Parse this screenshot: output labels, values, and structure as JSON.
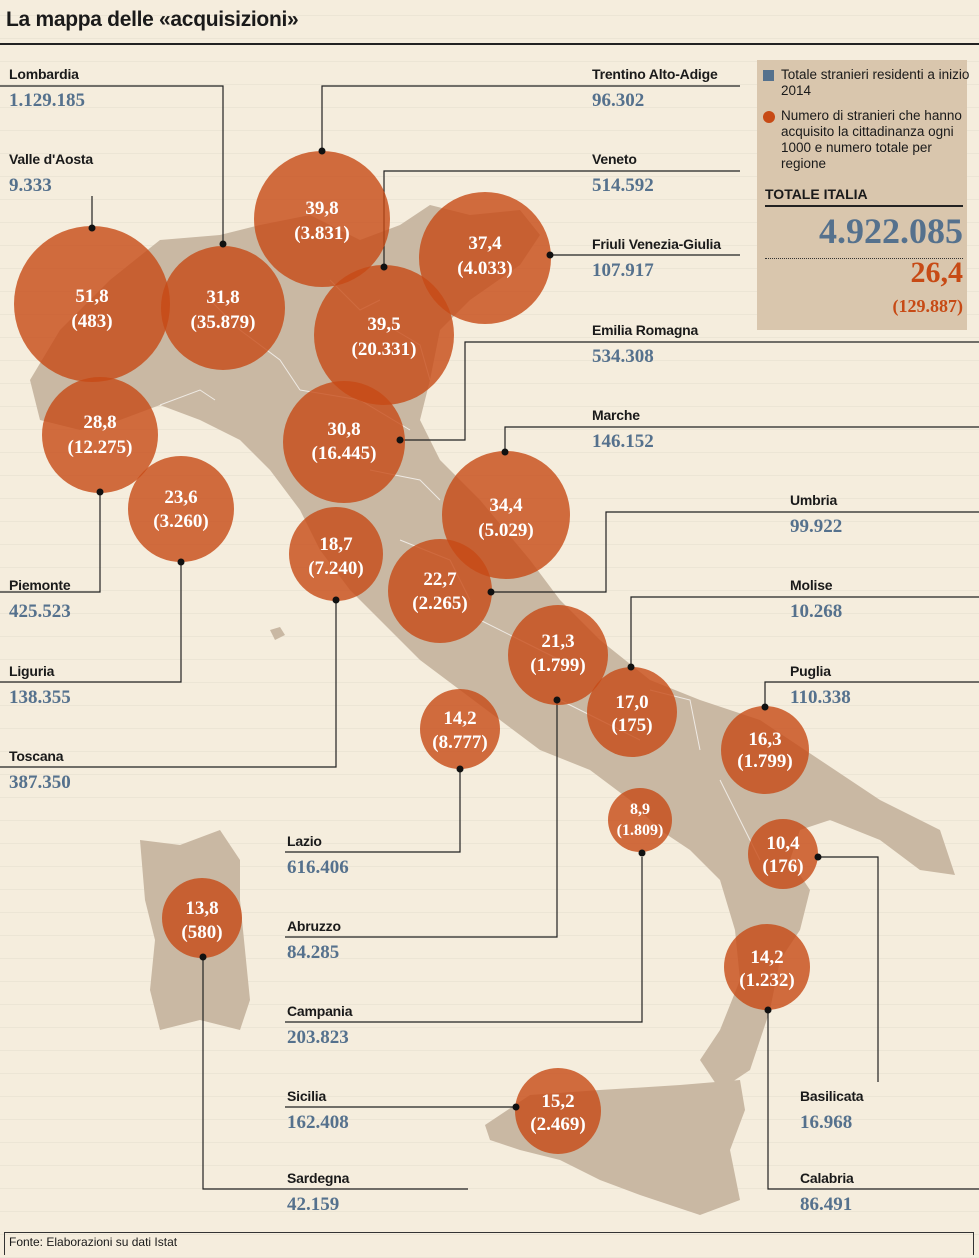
{
  "title": "La mappa delle «acquisizioni»",
  "legend": {
    "residents_label": "Totale stranieri residenti a inizio 2014",
    "acquired_label": "Numero di stranieri che hanno acquisito la cittadinanza ogni 1000 e numero totale per regione",
    "total_label": "TOTALE ITALIA",
    "total_residents": "4.922.085",
    "total_rate": "26,4",
    "total_count": "(129.887)"
  },
  "colors": {
    "bubble": "#c74a15",
    "residents": "#55718d",
    "land": "#c9b8a3",
    "background": "#f5eddd"
  },
  "regions": [
    {
      "id": "lombardia",
      "name": "Lombardia",
      "residents": "1.129.185",
      "rate": "31,8",
      "count": "(35.879)"
    },
    {
      "id": "valle-daosta",
      "name": "Valle d'Aosta",
      "residents": "9.333",
      "rate": "51,8",
      "count": "(483)"
    },
    {
      "id": "piemonte",
      "name": "Piemonte",
      "residents": "425.523",
      "rate": "28,8",
      "count": "(12.275)"
    },
    {
      "id": "liguria",
      "name": "Liguria",
      "residents": "138.355",
      "rate": "23,6",
      "count": "(3.260)"
    },
    {
      "id": "toscana",
      "name": "Toscana",
      "residents": "387.350",
      "rate": "18,7",
      "count": "(7.240)"
    },
    {
      "id": "trentino",
      "name": "Trentino Alto-Adige",
      "residents": "96.302",
      "rate": "39,8",
      "count": "(3.831)"
    },
    {
      "id": "veneto",
      "name": "Veneto",
      "residents": "514.592",
      "rate": "39,5",
      "count": "(20.331)"
    },
    {
      "id": "friuli",
      "name": "Friuli Venezia-Giulia",
      "residents": "107.917",
      "rate": "37,4",
      "count": "(4.033)"
    },
    {
      "id": "emilia",
      "name": "Emilia Romagna",
      "residents": "534.308",
      "rate": "30,8",
      "count": "(16.445)"
    },
    {
      "id": "marche",
      "name": "Marche",
      "residents": "146.152",
      "rate": "34,4",
      "count": "(5.029)"
    },
    {
      "id": "umbria",
      "name": "Umbria",
      "residents": "99.922",
      "rate": "22,7",
      "count": "(2.265)"
    },
    {
      "id": "molise",
      "name": "Molise",
      "residents": "10.268",
      "rate": "17,0",
      "count": "(175)"
    },
    {
      "id": "puglia",
      "name": "Puglia",
      "residents": "110.338",
      "rate": "16,3",
      "count": "(1.799)"
    },
    {
      "id": "lazio",
      "name": "Lazio",
      "residents": "616.406",
      "rate": "14,2",
      "count": "(8.777)"
    },
    {
      "id": "abruzzo",
      "name": "Abruzzo",
      "residents": "84.285",
      "rate": "21,3",
      "count": "(1.799)"
    },
    {
      "id": "campania",
      "name": "Campania",
      "residents": "203.823",
      "rate": "8,9",
      "count": "(1.809)"
    },
    {
      "id": "sicilia",
      "name": "Sicilia",
      "residents": "162.408",
      "rate": "15,2",
      "count": "(2.469)"
    },
    {
      "id": "sardegna",
      "name": "Sardegna",
      "residents": "42.159",
      "rate": "13,8",
      "count": "(580)"
    },
    {
      "id": "basilicata",
      "name": "Basilicata",
      "residents": "16.968",
      "rate": "10,4",
      "count": "(176)"
    },
    {
      "id": "calabria",
      "name": "Calabria",
      "residents": "86.491",
      "rate": "14,2",
      "count": "(1.232)"
    }
  ],
  "footer": "Fonte: Elaborazioni su dati Istat"
}
